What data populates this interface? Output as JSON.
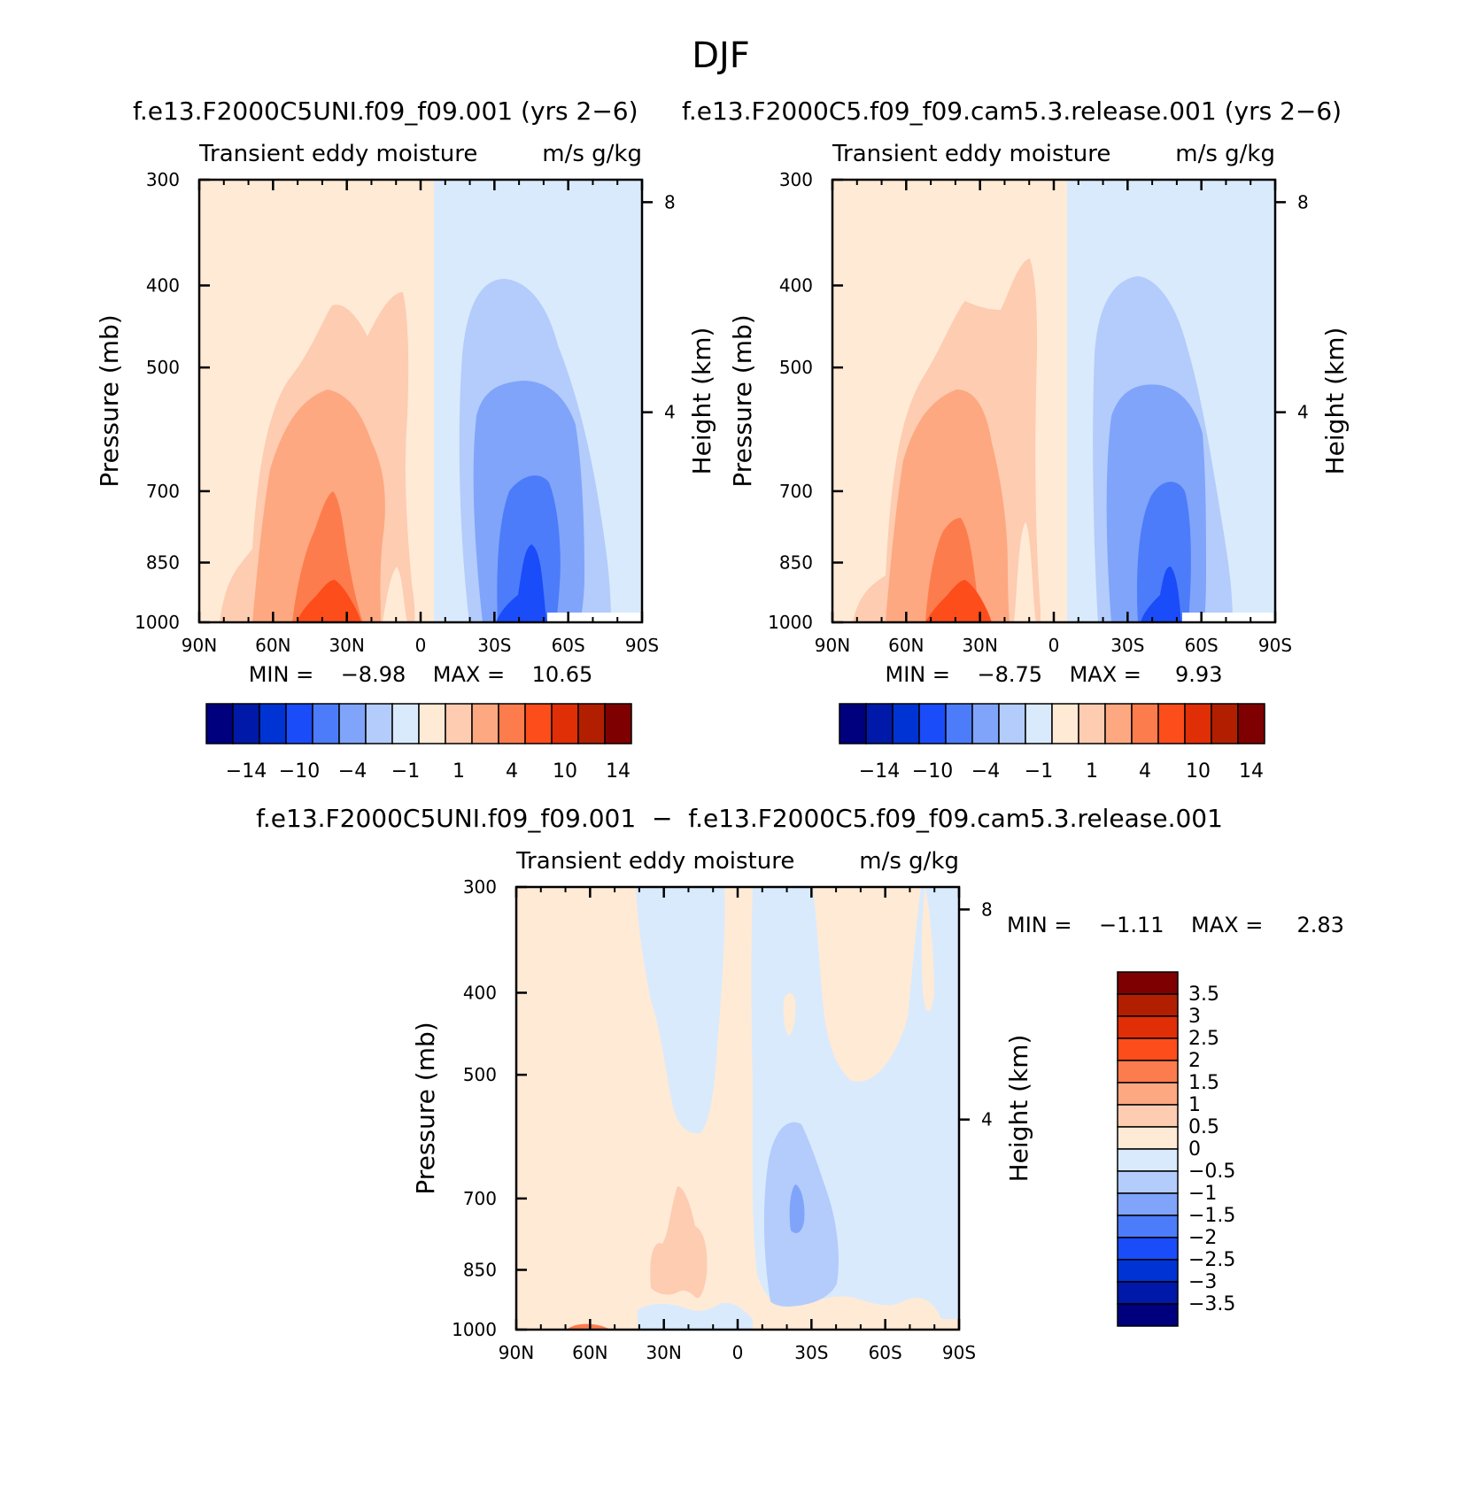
{
  "figure": {
    "title": "DJF",
    "diff_stats_text": "MIN =    −1.11    MAX =     2.83"
  },
  "chart_data": [
    {
      "type": "heatmap",
      "id": "panel-a",
      "title": "f.e13.F2000C5UNI.f09_f09.001 (yrs 2−6)",
      "subtitle": "Transient  eddy  moisture",
      "units": "m/s  g/kg",
      "xlabel": "",
      "ylabel": "Pressure  (mb)",
      "y2label": "Height  (km)",
      "x_ticks": [
        "90N",
        "60N",
        "30N",
        "0",
        "30S",
        "60S",
        "90S"
      ],
      "x_tick_values": [
        90,
        60,
        30,
        0,
        -30,
        -60,
        -90
      ],
      "y_ticks": [
        "300",
        "400",
        "500",
        "700",
        "850",
        "1000"
      ],
      "y_tick_values": [
        300,
        400,
        500,
        700,
        850,
        1000
      ],
      "y2_ticks": [
        "8",
        "4"
      ],
      "y2_tick_values": [
        8,
        4
      ],
      "ylim": [
        1000,
        300
      ],
      "xlim": [
        90,
        -90
      ],
      "min": -8.98,
      "max": 10.65,
      "stats_text": "MIN =    −8.98    MAX =    10.65",
      "colorbar_labels": [
        "−14",
        "−10",
        "−4",
        "−1",
        "1",
        "4",
        "10",
        "14"
      ]
    },
    {
      "type": "heatmap",
      "id": "panel-b",
      "title": "f.e13.F2000C5.f09_f09.cam5.3.release.001 (yrs 2−6)",
      "subtitle": "Transient  eddy  moisture",
      "units": "m/s  g/kg",
      "xlabel": "",
      "ylabel": "Pressure  (mb)",
      "y2label": "Height  (km)",
      "x_ticks": [
        "90N",
        "60N",
        "30N",
        "0",
        "30S",
        "60S",
        "90S"
      ],
      "x_tick_values": [
        90,
        60,
        30,
        0,
        -30,
        -60,
        -90
      ],
      "y_ticks": [
        "300",
        "400",
        "500",
        "700",
        "850",
        "1000"
      ],
      "y_tick_values": [
        300,
        400,
        500,
        700,
        850,
        1000
      ],
      "y2_ticks": [
        "8",
        "4"
      ],
      "y2_tick_values": [
        8,
        4
      ],
      "ylim": [
        1000,
        300
      ],
      "xlim": [
        90,
        -90
      ],
      "min": -8.75,
      "max": 9.93,
      "stats_text": "MIN =    −8.75    MAX =     9.93",
      "colorbar_labels": [
        "−14",
        "−10",
        "−4",
        "−1",
        "1",
        "4",
        "10",
        "14"
      ]
    },
    {
      "type": "heatmap",
      "id": "panel-diff",
      "title": "f.e13.F2000C5UNI.f09_f09.001  −  f.e13.F2000C5.f09_f09.cam5.3.release.001",
      "subtitle": "Transient  eddy  moisture",
      "units": "m/s  g/kg",
      "xlabel": "",
      "ylabel": "Pressure  (mb)",
      "y2label": "Height  (km)",
      "x_ticks": [
        "90N",
        "60N",
        "30N",
        "0",
        "30S",
        "60S",
        "90S"
      ],
      "x_tick_values": [
        90,
        60,
        30,
        0,
        -30,
        -60,
        -90
      ],
      "y_ticks": [
        "300",
        "400",
        "500",
        "700",
        "850",
        "1000"
      ],
      "y_tick_values": [
        300,
        400,
        500,
        700,
        850,
        1000
      ],
      "y2_ticks": [
        "8",
        "4"
      ],
      "y2_tick_values": [
        8,
        4
      ],
      "ylim": [
        1000,
        300
      ],
      "xlim": [
        90,
        -90
      ],
      "min": -1.11,
      "max": 2.83,
      "colorbar_labels": [
        "3.5",
        "3",
        "2.5",
        "2",
        "1.5",
        "1",
        "0.5",
        "0",
        "−0.5",
        "−1",
        "−1.5",
        "−2",
        "−2.5",
        "−3",
        "−3.5"
      ]
    }
  ],
  "colors": {
    "palette": [
      "#00007f",
      "#0019a8",
      "#0033d3",
      "#1a4cfa",
      "#4d7cfa",
      "#80a4fa",
      "#b3ccfb",
      "#d9eafc",
      "#ffead6",
      "#fdccb1",
      "#fda881",
      "#fd7c4d",
      "#fd4d1a",
      "#e02e07",
      "#b21f00",
      "#7f0000"
    ]
  }
}
